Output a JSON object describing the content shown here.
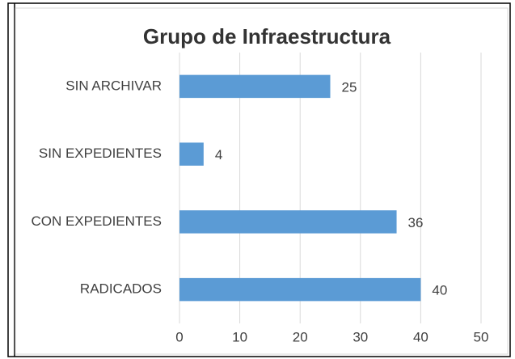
{
  "chart_data": {
    "type": "bar",
    "orientation": "horizontal",
    "title": "Grupo de Infraestructura",
    "categories": [
      "SIN ARCHIVAR",
      "SIN EXPEDIENTES",
      "CON EXPEDIENTES",
      "RADICADOS"
    ],
    "values": [
      25,
      4,
      36,
      40
    ],
    "color": "#5b9bd5",
    "xlim": [
      0,
      50
    ],
    "xticks": [
      0,
      10,
      20,
      30,
      40,
      50
    ],
    "grid": true
  }
}
